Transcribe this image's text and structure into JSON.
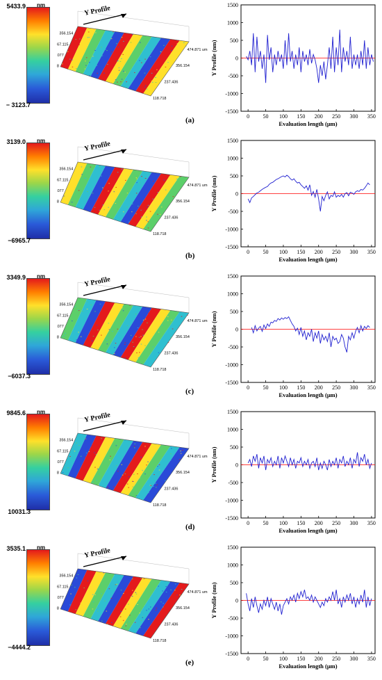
{
  "colors": {
    "series": "#1f1fd0",
    "zero_line": "#ff0000",
    "map_red": "#e41a1c",
    "map_yellow": "#ffe02a",
    "map_green": "#5ccf6a",
    "map_cyan": "#2fbfd0",
    "map_blue": "#2a4ad8"
  },
  "surface": {
    "profile_label": "Y Profile",
    "y_ticks": [
      "356.154",
      "267.115",
      "178.077",
      "89.038"
    ],
    "x_ticks": [
      "118.718",
      "237.436",
      "356.154",
      "474.871 um"
    ]
  },
  "panels": [
    {
      "label": "(a)",
      "cbar_top": "5433.9",
      "cbar_unit": "nm",
      "cbar_bottom": "− 3123.7"
    },
    {
      "label": "(b)",
      "cbar_top": "3139.0",
      "cbar_unit": "nm",
      "cbar_bottom": "−6965.7"
    },
    {
      "label": "(c)",
      "cbar_top": "3349.9",
      "cbar_unit": "nm",
      "cbar_bottom": "−6037.3"
    },
    {
      "label": "(d)",
      "cbar_top": "9845.6",
      "cbar_unit": "nm",
      "cbar_bottom": "10031.3"
    },
    {
      "label": "(e)",
      "cbar_top": "3535.1",
      "cbar_unit": "nm",
      "cbar_bottom": "−4444.2"
    }
  ],
  "chart_data": [
    {
      "type": "line",
      "panel": "(a)",
      "xlabel": "Evaluation length (μm)",
      "ylabel": "Y Profile (nm)",
      "xlim": [
        -20,
        360
      ],
      "ylim": [
        -1500,
        1500
      ],
      "xticks": [
        0,
        50,
        100,
        150,
        200,
        250,
        300,
        350
      ],
      "yticks": [
        -1500,
        -1000,
        -500,
        0,
        500,
        1000,
        1500
      ],
      "zero_line": 0,
      "series": [
        {
          "x": [
            -5,
            0,
            5,
            10,
            15,
            20,
            25,
            30,
            35,
            40,
            45,
            50,
            55,
            60,
            65,
            70,
            75,
            80,
            85,
            90,
            95,
            100,
            105,
            110,
            115,
            120,
            125,
            130,
            135,
            140,
            145,
            150,
            155,
            160,
            165,
            170,
            175,
            180,
            185,
            190,
            195,
            200,
            205,
            210,
            215,
            220,
            225,
            230,
            235,
            240,
            245,
            250,
            255,
            260,
            265,
            270,
            275,
            280,
            285,
            290,
            295,
            300,
            305,
            310,
            315,
            320,
            325,
            330,
            335,
            340,
            345,
            350,
            355
          ],
          "y": [
            50,
            -50,
            200,
            -200,
            700,
            -400,
            600,
            -100,
            200,
            -300,
            100,
            -700,
            650,
            -50,
            300,
            -400,
            100,
            -200,
            200,
            -100,
            100,
            -300,
            500,
            -200,
            700,
            -100,
            200,
            -300,
            100,
            -200,
            300,
            -400,
            200,
            -100,
            100,
            -200,
            250,
            -150,
            100,
            -50,
            -300,
            -700,
            -200,
            -500,
            -100,
            -600,
            -200,
            300,
            -300,
            600,
            -400,
            300,
            -200,
            800,
            -400,
            300,
            -100,
            200,
            -200,
            600,
            -300,
            100,
            -200,
            100,
            -300,
            200,
            -200,
            500,
            -300,
            300,
            -200,
            100,
            -100
          ]
        }
      ]
    },
    {
      "type": "line",
      "panel": "(b)",
      "xlabel": "Evaluation length (μm)",
      "ylabel": "Y Profile (nm)",
      "xlim": [
        -20,
        360
      ],
      "ylim": [
        -1500,
        1500
      ],
      "xticks": [
        0,
        50,
        100,
        150,
        200,
        250,
        300,
        350
      ],
      "yticks": [
        -1500,
        -1000,
        -500,
        0,
        500,
        1000,
        1500
      ],
      "zero_line": 0,
      "series": [
        {
          "x": [
            0,
            5,
            10,
            15,
            20,
            25,
            30,
            35,
            40,
            45,
            50,
            55,
            60,
            65,
            70,
            75,
            80,
            85,
            90,
            95,
            100,
            105,
            110,
            115,
            120,
            125,
            130,
            135,
            140,
            145,
            150,
            155,
            160,
            165,
            170,
            175,
            180,
            185,
            190,
            195,
            200,
            205,
            210,
            215,
            220,
            225,
            230,
            235,
            240,
            245,
            250,
            255,
            260,
            265,
            270,
            275,
            280,
            285,
            290,
            295,
            300,
            305,
            310,
            315,
            320,
            325,
            330,
            335,
            340,
            345
          ],
          "y": [
            -150,
            -250,
            -120,
            -80,
            -30,
            20,
            40,
            80,
            120,
            150,
            180,
            200,
            260,
            300,
            320,
            360,
            400,
            420,
            450,
            480,
            500,
            470,
            520,
            480,
            420,
            380,
            420,
            350,
            300,
            320,
            250,
            200,
            150,
            220,
            100,
            250,
            -50,
            60,
            -100,
            120,
            -150,
            -500,
            -80,
            -200,
            -50,
            50,
            -150,
            -50,
            -80,
            50,
            -100,
            -50,
            -80,
            -20,
            -100,
            0,
            30,
            -60,
            40,
            20,
            -20,
            50,
            80,
            60,
            120,
            100,
            150,
            220,
            300,
            250
          ]
        }
      ]
    },
    {
      "type": "line",
      "panel": "(c)",
      "xlabel": "Evaluation length (μm)",
      "ylabel": "Y Profile (nm)",
      "xlim": [
        -20,
        360
      ],
      "ylim": [
        -1500,
        1500
      ],
      "xticks": [
        0,
        50,
        100,
        150,
        200,
        250,
        300,
        350
      ],
      "yticks": [
        -1500,
        -1000,
        -500,
        0,
        500,
        1000,
        1500
      ],
      "zero_line": 0,
      "series": [
        {
          "x": [
            10,
            15,
            20,
            25,
            30,
            35,
            40,
            45,
            50,
            55,
            60,
            65,
            70,
            75,
            80,
            85,
            90,
            95,
            100,
            105,
            110,
            115,
            120,
            125,
            130,
            135,
            140,
            145,
            150,
            155,
            160,
            165,
            170,
            175,
            180,
            185,
            190,
            195,
            200,
            205,
            210,
            215,
            220,
            225,
            230,
            235,
            240,
            245,
            250,
            255,
            260,
            265,
            270,
            275,
            280,
            285,
            290,
            295,
            300,
            305,
            310,
            315,
            320,
            325,
            330,
            335,
            340,
            345
          ],
          "y": [
            50,
            -100,
            100,
            -50,
            30,
            80,
            -60,
            120,
            20,
            150,
            80,
            200,
            180,
            250,
            220,
            300,
            260,
            320,
            280,
            330,
            300,
            350,
            250,
            150,
            80,
            -50,
            30,
            -150,
            50,
            -200,
            -50,
            -300,
            -100,
            -200,
            0,
            -350,
            -100,
            -250,
            -50,
            -400,
            -150,
            -300,
            -200,
            -350,
            -100,
            -500,
            -200,
            -300,
            -250,
            -400,
            -350,
            -150,
            -250,
            -500,
            -650,
            -200,
            -300,
            -100,
            -250,
            -50,
            50,
            -100,
            100,
            -50,
            80,
            20,
            100,
            50
          ]
        }
      ]
    },
    {
      "type": "line",
      "panel": "(d)",
      "xlabel": "Evaluation length (μm)",
      "ylabel": "Y Profile (nm)",
      "xlim": [
        -20,
        360
      ],
      "ylim": [
        -1500,
        1500
      ],
      "xticks": [
        0,
        50,
        100,
        150,
        200,
        250,
        300,
        350
      ],
      "yticks": [
        -1500,
        -1000,
        -500,
        0,
        500,
        1000,
        1500
      ],
      "zero_line": 0,
      "series": [
        {
          "x": [
            0,
            5,
            10,
            15,
            20,
            25,
            30,
            35,
            40,
            45,
            50,
            55,
            60,
            65,
            70,
            75,
            80,
            85,
            90,
            95,
            100,
            105,
            110,
            115,
            120,
            125,
            130,
            135,
            140,
            145,
            150,
            155,
            160,
            165,
            170,
            175,
            180,
            185,
            190,
            195,
            200,
            205,
            210,
            215,
            220,
            225,
            230,
            235,
            240,
            245,
            250,
            255,
            260,
            265,
            270,
            275,
            280,
            285,
            290,
            295,
            300,
            305,
            310,
            315,
            320,
            325,
            330,
            335,
            340,
            345,
            350
          ],
          "y": [
            50,
            150,
            -50,
            250,
            100,
            300,
            -100,
            200,
            50,
            250,
            -150,
            150,
            50,
            200,
            -50,
            100,
            0,
            250,
            -100,
            200,
            50,
            250,
            100,
            -50,
            200,
            0,
            150,
            -100,
            100,
            50,
            200,
            -50,
            100,
            0,
            150,
            -100,
            50,
            100,
            -50,
            200,
            -150,
            50,
            -100,
            100,
            0,
            -150,
            150,
            -50,
            100,
            0,
            200,
            -100,
            150,
            50,
            250,
            -50,
            100,
            0,
            200,
            -100,
            150,
            50,
            350,
            -50,
            200,
            100,
            300,
            0,
            150,
            -100,
            50
          ]
        }
      ]
    },
    {
      "type": "line",
      "panel": "(e)",
      "xlabel": "Evaluation length (μm)",
      "ylabel": "Y Profile (nm)",
      "xlim": [
        -20,
        360
      ],
      "ylim": [
        -1500,
        1500
      ],
      "xticks": [
        0,
        50,
        100,
        150,
        200,
        250,
        300,
        350
      ],
      "yticks": [
        -1500,
        -1000,
        -500,
        0,
        500,
        1000,
        1500
      ],
      "zero_line": 0,
      "series": [
        {
          "x": [
            -5,
            0,
            5,
            10,
            15,
            20,
            25,
            30,
            35,
            40,
            45,
            50,
            55,
            60,
            65,
            70,
            75,
            80,
            85,
            90,
            95,
            100,
            105,
            110,
            115,
            120,
            125,
            130,
            135,
            140,
            145,
            150,
            155,
            160,
            165,
            170,
            175,
            180,
            185,
            190,
            195,
            200,
            205,
            210,
            215,
            220,
            225,
            230,
            235,
            240,
            245,
            250,
            255,
            260,
            265,
            270,
            275,
            280,
            285,
            290,
            295,
            300,
            305,
            310,
            315,
            320,
            325,
            330,
            335,
            340,
            345,
            350
          ],
          "y": [
            200,
            -100,
            -300,
            50,
            -200,
            100,
            -150,
            -350,
            -100,
            -250,
            0,
            -150,
            100,
            -200,
            50,
            -100,
            -250,
            -50,
            -300,
            -100,
            -400,
            -150,
            -50,
            50,
            -100,
            100,
            0,
            150,
            -50,
            200,
            50,
            250,
            100,
            300,
            50,
            100,
            0,
            150,
            -50,
            100,
            0,
            -100,
            -200,
            -50,
            -150,
            50,
            -50,
            100,
            0,
            250,
            0,
            300,
            -100,
            50,
            -200,
            100,
            -50,
            150,
            0,
            200,
            -100,
            100,
            -200,
            50,
            -100,
            150,
            -50,
            300,
            -200,
            100,
            -150,
            50
          ]
        }
      ]
    }
  ]
}
